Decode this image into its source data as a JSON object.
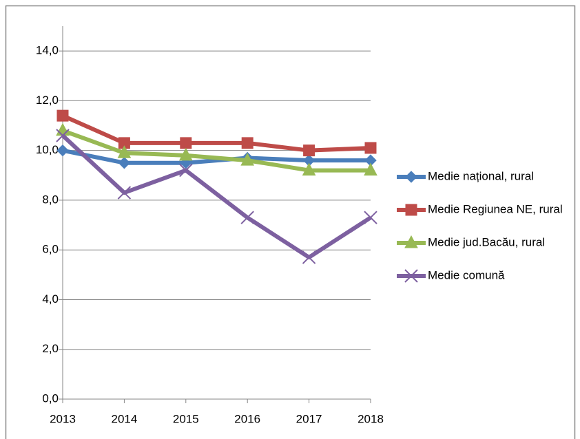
{
  "chart_data": {
    "type": "line",
    "categories": [
      "2013",
      "2014",
      "2015",
      "2016",
      "2017",
      "2018"
    ],
    "series": [
      {
        "name": "Medie național, rural",
        "color": "#4a7ebb",
        "marker": "diamond",
        "values": [
          10.0,
          9.5,
          9.5,
          9.7,
          9.6,
          9.6
        ]
      },
      {
        "name": "Medie Regiunea NE, rural",
        "color": "#be4b48",
        "marker": "square",
        "values": [
          11.4,
          10.3,
          10.3,
          10.3,
          10.0,
          10.1
        ]
      },
      {
        "name": "Medie jud.Bacău, rural",
        "color": "#98b954",
        "marker": "triangle",
        "values": [
          10.8,
          9.9,
          9.8,
          9.6,
          9.2,
          9.2
        ]
      },
      {
        "name": "Medie comună",
        "color": "#7d60a0",
        "marker": "x",
        "values": [
          10.6,
          8.3,
          9.2,
          7.3,
          5.7,
          7.3
        ]
      }
    ],
    "ylim": [
      0,
      15
    ],
    "yticks": [
      {
        "value": 0,
        "label": "0,0"
      },
      {
        "value": 2,
        "label": "2,0"
      },
      {
        "value": 4,
        "label": "4,0"
      },
      {
        "value": 6,
        "label": "6,0"
      },
      {
        "value": 8,
        "label": "8,0"
      },
      {
        "value": 10,
        "label": "10,0"
      },
      {
        "value": 12,
        "label": "12,0"
      },
      {
        "value": 14,
        "label": "14,0"
      }
    ],
    "grid": true,
    "legend": "right"
  }
}
